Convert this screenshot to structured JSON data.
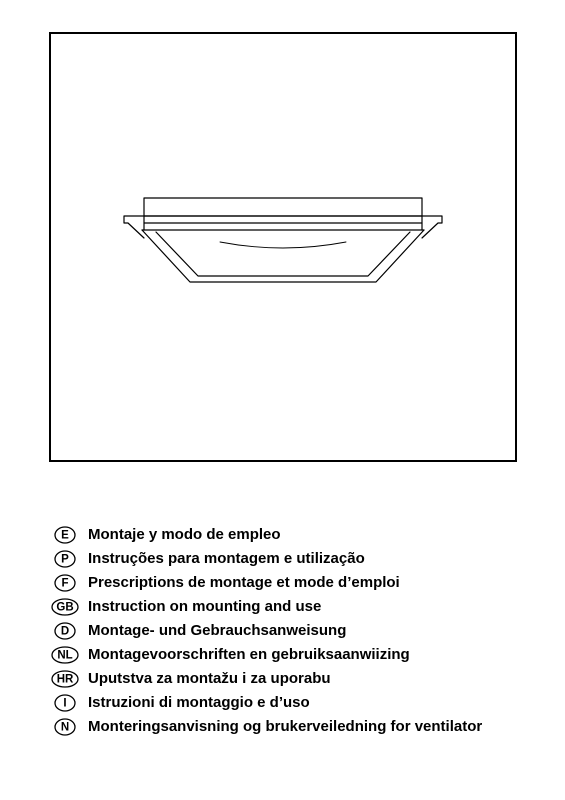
{
  "figure": {
    "border_color": "#000000",
    "background_color": "#ffffff",
    "product_stroke": "#000000",
    "product_stroke_width": 1.2
  },
  "languages": [
    {
      "code": "E",
      "ellipse_rx": 10,
      "label": "Montaje y modo de empleo"
    },
    {
      "code": "P",
      "ellipse_rx": 10,
      "label": "Instruções para montagem e utilização"
    },
    {
      "code": "F",
      "ellipse_rx": 10,
      "label": "Prescriptions de montage et mode d’emploi"
    },
    {
      "code": "GB",
      "ellipse_rx": 13,
      "label": "Instruction on mounting and use"
    },
    {
      "code": "D",
      "ellipse_rx": 10,
      "label": "Montage- und Gebrauchsanweisung"
    },
    {
      "code": "NL",
      "ellipse_rx": 13,
      "label": "Montagevoorschriften en gebruiksaanwiizing"
    },
    {
      "code": "HR",
      "ellipse_rx": 13,
      "label": "Uputstva za montažu i za uporabu"
    },
    {
      "code": "I",
      "ellipse_rx": 10,
      "label": "Istruzioni di montaggio e d’uso"
    },
    {
      "code": "N",
      "ellipse_rx": 10,
      "label": "Monteringsanvisning og brukerveiledning for ventilator"
    }
  ],
  "typography": {
    "label_fontsize": 15,
    "label_fontweight": "bold",
    "code_fontsize": 11.5,
    "code_fontweight": "bold"
  },
  "colors": {
    "text": "#000000",
    "background": "#ffffff",
    "border": "#000000"
  }
}
